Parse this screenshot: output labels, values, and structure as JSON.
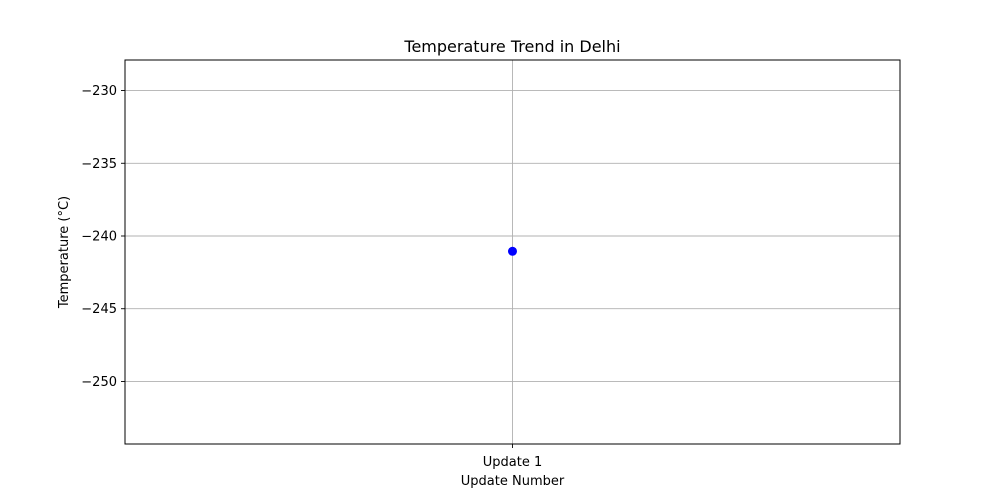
{
  "chart_data": {
    "type": "line",
    "title": "Temperature Trend in Delhi",
    "xlabel": "Update Number",
    "ylabel": "Temperature (°C)",
    "categories": [
      "Update 1"
    ],
    "series": [
      {
        "values": [
          -241.05
        ],
        "color": "#0000ff",
        "marker": "circle"
      }
    ],
    "ylim": [
      -254.3,
      -227.9
    ],
    "yticks": [
      -230,
      -235,
      -240,
      -245,
      -250
    ],
    "ytick_labels": [
      "−230",
      "−235",
      "−240",
      "−245",
      "−250"
    ],
    "grid": true
  }
}
